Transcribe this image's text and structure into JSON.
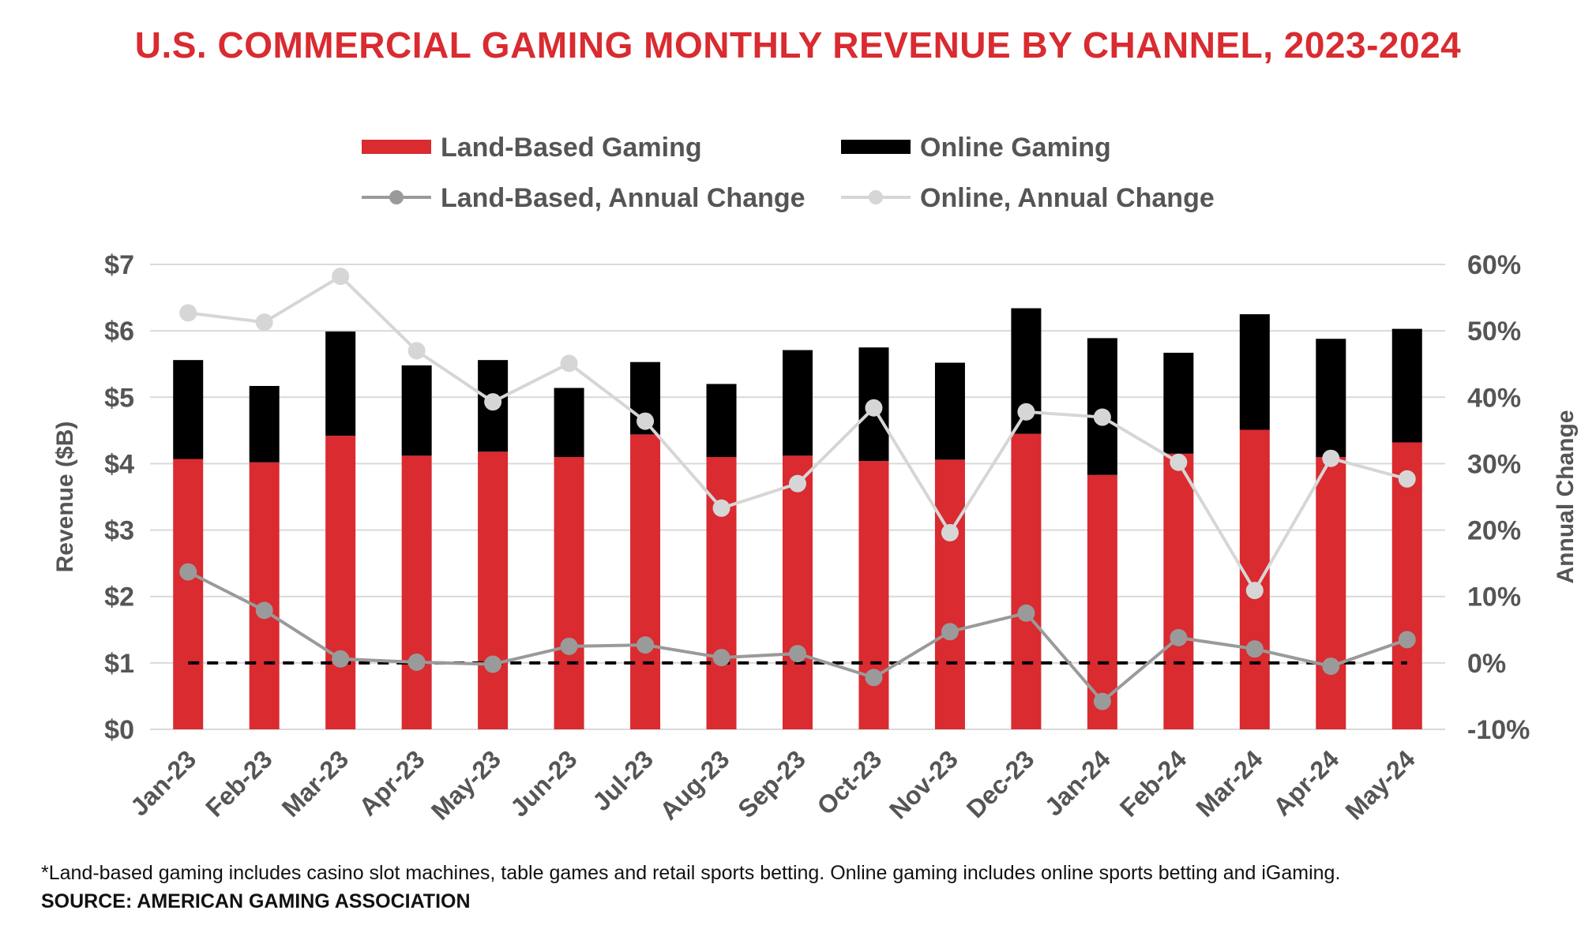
{
  "colors": {
    "title": "#d92b30",
    "land": "#d92b30",
    "online": "#000000",
    "land_change": "#9a9a9a",
    "online_change": "#d6d6d6",
    "axis_text": "#555555",
    "grid": "#d9d9d9",
    "zero_line": "#000000"
  },
  "title": "U.S. COMMERCIAL GAMING MONTHLY REVENUE BY CHANNEL, 2023-2024",
  "footnote": "*Land-based gaming includes casino slot machines, table games and retail sports betting. Online gaming includes online sports betting and iGaming.",
  "source": "SOURCE: AMERICAN GAMING ASSOCIATION",
  "chart_data": {
    "type": "bar",
    "stacked": true,
    "categories": [
      "Jan-23",
      "Feb-23",
      "Mar-23",
      "Apr-23",
      "May-23",
      "Jun-23",
      "Jul-23",
      "Aug-23",
      "Sep-23",
      "Oct-23",
      "Nov-23",
      "Dec-23",
      "Jan-24",
      "Feb-24",
      "Mar-24",
      "Apr-24",
      "May-24"
    ],
    "series": [
      {
        "name": "Land-Based Gaming",
        "type": "bar",
        "axis": "left",
        "values": [
          4.07,
          4.02,
          4.42,
          4.12,
          4.18,
          4.1,
          4.44,
          4.1,
          4.12,
          4.04,
          4.06,
          4.45,
          3.83,
          4.15,
          4.51,
          4.1,
          4.32
        ]
      },
      {
        "name": "Online Gaming",
        "type": "bar",
        "axis": "left",
        "values": [
          1.49,
          1.15,
          1.57,
          1.36,
          1.38,
          1.04,
          1.09,
          1.1,
          1.59,
          1.71,
          1.46,
          1.89,
          2.06,
          1.52,
          1.74,
          1.78,
          1.71
        ]
      },
      {
        "name": "Land-Based, Annual Change",
        "type": "line",
        "axis": "right",
        "values": [
          13.7,
          7.9,
          0.6,
          0.1,
          -0.2,
          2.5,
          2.7,
          0.8,
          1.4,
          -2.2,
          4.7,
          7.5,
          -5.8,
          3.8,
          2.1,
          -0.5,
          3.5
        ]
      },
      {
        "name": "Online, Annual Change",
        "type": "line",
        "axis": "right",
        "values": [
          52.7,
          51.3,
          58.2,
          47.0,
          39.3,
          45.1,
          36.4,
          23.3,
          27.0,
          38.4,
          19.6,
          37.8,
          37.0,
          30.2,
          10.9,
          30.8,
          27.7
        ]
      }
    ],
    "ylabel": "Revenue ($B)",
    "ylim": [
      0,
      7
    ],
    "yticks": [
      "$0",
      "$1",
      "$2",
      "$3",
      "$4",
      "$5",
      "$6",
      "$7"
    ],
    "y2label": "Annual Change",
    "y2lim": [
      -10,
      60
    ],
    "y2ticks": [
      "-10%",
      "0%",
      "10%",
      "20%",
      "30%",
      "40%",
      "50%",
      "60%"
    ],
    "grid": true,
    "legend_position": "top",
    "reference_line": {
      "axis": "right",
      "value": 0,
      "style": "dashed"
    }
  }
}
